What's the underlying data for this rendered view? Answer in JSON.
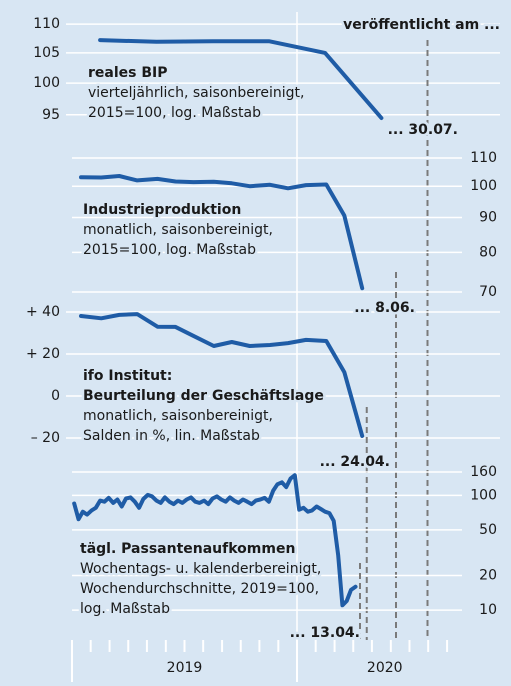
{
  "annotation": "veröffentlicht am ...",
  "x_axis": {
    "xlim": [
      2019,
      2020.75
    ],
    "xticks": [
      2019,
      2019.083,
      2019.167,
      2019.25,
      2019.333,
      2019.417,
      2019.5,
      2019.583,
      2019.667,
      2019.75,
      2019.833,
      2019.917,
      2020,
      2020.083,
      2020.167,
      2020.25,
      2020.333,
      2020.417,
      2020.5,
      2020.583,
      2020.667
    ],
    "xlabels": [
      {
        "value": 2019.5,
        "label": "2019"
      },
      {
        "value": 2020.39,
        "label": "2020"
      }
    ]
  },
  "chart_data": [
    {
      "type": "line",
      "title": [
        "reales BIP"
      ],
      "subtitle": [
        "vierteljährlich, saisonbereinigt,",
        "2015=100, log. Maßstab"
      ],
      "color": "#1f5ca6",
      "log_scale": true,
      "axis_side": "left",
      "grid": true,
      "x": [
        2019.125,
        2019.375,
        2019.625,
        2019.875,
        2020.125,
        2020.375
      ],
      "values": [
        107.2,
        106.9,
        107.0,
        107.0,
        105.0,
        94.5
      ],
      "ylim": [
        94.2,
        111.1
      ],
      "yticks": [
        95,
        100,
        105,
        110
      ],
      "release": {
        "value": 2020.58,
        "label": "... 30.07."
      }
    },
    {
      "type": "line",
      "title": [
        "Industrieproduktion"
      ],
      "subtitle": [
        "monatlich, saisonbereinigt,",
        "2015=100, log. Maßstab"
      ],
      "color": "#1f5ca6",
      "log_scale": true,
      "axis_side": "right",
      "grid": true,
      "x": [
        2019.04,
        2019.13,
        2019.21,
        2019.29,
        2019.38,
        2019.46,
        2019.54,
        2019.63,
        2019.71,
        2019.79,
        2019.88,
        2019.96,
        2020.04,
        2020.13,
        2020.21,
        2020.29
      ],
      "values": [
        103.1,
        103.0,
        103.5,
        102.0,
        102.5,
        101.6,
        101.4,
        101.5,
        101.0,
        100.0,
        100.5,
        99.3,
        100.4,
        100.6,
        90.6,
        70.9
      ],
      "ylim": [
        68.6,
        113
      ],
      "yticks": [
        70,
        80,
        90,
        100,
        110
      ],
      "release": {
        "value": 2020.44,
        "label": "... 8.06."
      }
    },
    {
      "type": "line",
      "title": [
        "ifo Institut:",
        "Beurteilung der Geschäftslage"
      ],
      "subtitle": [
        "monatlich, saisonbereinigt,",
        "Salden in %, lin. Maßstab"
      ],
      "color": "#1f5ca6",
      "log_scale": false,
      "axis_side": "left",
      "grid": true,
      "x": [
        2019.04,
        2019.13,
        2019.21,
        2019.29,
        2019.38,
        2019.46,
        2019.54,
        2019.63,
        2019.71,
        2019.79,
        2019.88,
        2019.96,
        2020.04,
        2020.13,
        2020.21,
        2020.29
      ],
      "values": [
        38.1,
        37,
        38.6,
        39,
        33,
        32.9,
        28.6,
        23.8,
        25.7,
        23.8,
        24.3,
        25.2,
        26.7,
        26.2,
        11.4,
        -19
      ],
      "ylim": [
        -25.7,
        45.7
      ],
      "yticks": [
        {
          "value": -20,
          "label": "– 20"
        },
        0,
        {
          "value": 20,
          "label": "+ 20"
        },
        {
          "value": 40,
          "label": "+ 40"
        }
      ],
      "release": {
        "value": 2020.31,
        "label": "... 24.04."
      }
    },
    {
      "type": "line",
      "title": [
        "tägl. Passantenaufkommen"
      ],
      "subtitle": [
        "Wochentags- u. kalenderbereinigt,",
        "Wochendurchschnitte, 2019=100,",
        "log. Maßstab"
      ],
      "color": "#1f5ca6",
      "log_scale": true,
      "axis_side": "right",
      "grid": true,
      "x": [
        2019.01,
        2019.029,
        2019.048,
        2019.067,
        2019.087,
        2019.106,
        2019.125,
        2019.144,
        2019.163,
        2019.183,
        2019.202,
        2019.221,
        2019.24,
        2019.26,
        2019.279,
        2019.298,
        2019.317,
        2019.337,
        2019.356,
        2019.375,
        2019.394,
        2019.413,
        2019.433,
        2019.452,
        2019.471,
        2019.49,
        2019.51,
        2019.529,
        2019.548,
        2019.567,
        2019.587,
        2019.606,
        2019.625,
        2019.644,
        2019.663,
        2019.683,
        2019.702,
        2019.721,
        2019.74,
        2019.76,
        2019.779,
        2019.798,
        2019.817,
        2019.837,
        2019.856,
        2019.875,
        2019.894,
        2019.913,
        2019.933,
        2019.952,
        2019.971,
        2019.99,
        2020.01,
        2020.029,
        2020.048,
        2020.067,
        2020.087,
        2020.106,
        2020.125,
        2020.144,
        2020.163,
        2020.183,
        2020.202,
        2020.221,
        2020.24,
        2020.26
      ],
      "values": [
        85,
        62,
        72,
        68,
        74,
        78,
        90,
        88,
        95,
        86,
        92,
        80,
        94,
        96,
        88,
        78,
        93,
        101,
        98,
        90,
        86,
        96,
        88,
        84,
        90,
        86,
        92,
        96,
        88,
        86,
        90,
        84,
        94,
        98,
        92,
        88,
        96,
        90,
        86,
        92,
        88,
        84,
        90,
        92,
        95,
        88,
        110,
        125,
        130,
        118,
        140,
        150,
        75,
        78,
        72,
        74,
        80,
        76,
        72,
        70,
        60,
        30,
        11,
        12,
        15,
        16
      ],
      "ylim": [
        9.06,
        184
      ],
      "yticks": [
        10,
        20,
        50,
        100,
        160
      ],
      "release": {
        "value": 2020.28,
        "label": "... 13.04."
      }
    }
  ]
}
